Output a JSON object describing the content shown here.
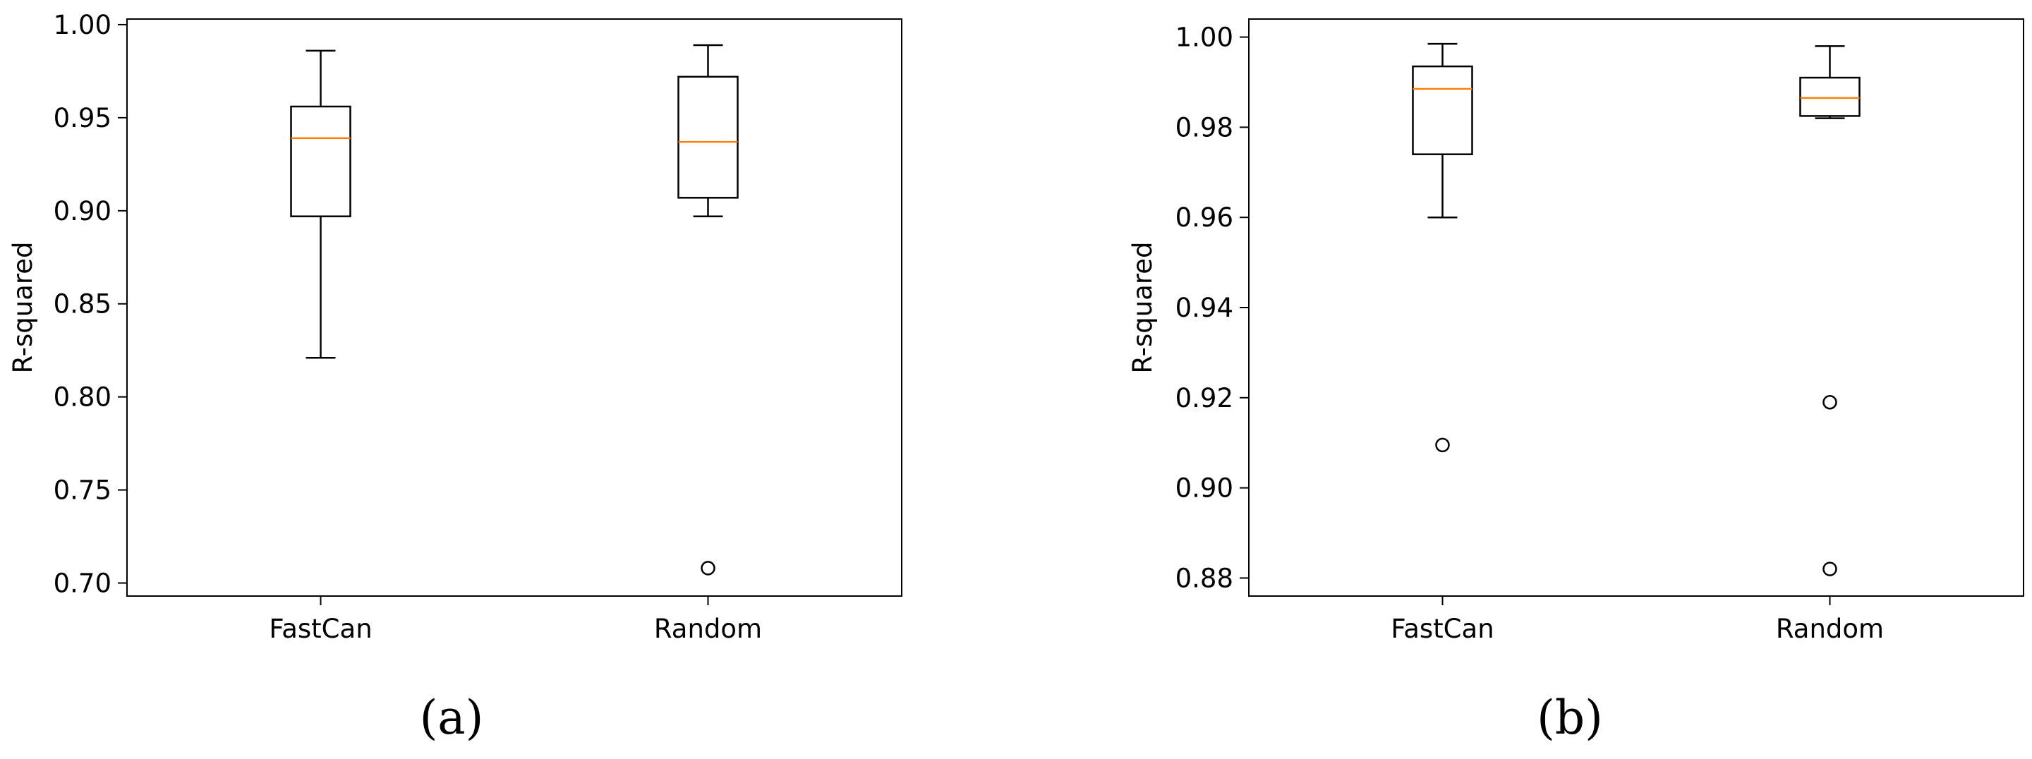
{
  "chart_data": [
    {
      "type": "box",
      "panel_label": "(a)",
      "ylabel": "R-squared",
      "xlabel": "",
      "categories": [
        "FastCan",
        "Random"
      ],
      "ylim": [
        0.693,
        1.003
      ],
      "yticks": [
        0.7,
        0.75,
        0.8,
        0.85,
        0.9,
        0.95,
        1.0
      ],
      "ytick_labels": [
        "0.70",
        "0.75",
        "0.80",
        "0.85",
        "0.90",
        "0.95",
        "1.00"
      ],
      "boxes": [
        {
          "name": "FastCan",
          "whisker_low": 0.821,
          "q1": 0.897,
          "median": 0.939,
          "q3": 0.956,
          "whisker_high": 0.986,
          "outliers": []
        },
        {
          "name": "Random",
          "whisker_low": 0.897,
          "q1": 0.907,
          "median": 0.937,
          "q3": 0.972,
          "whisker_high": 0.989,
          "outliers": [
            0.708
          ]
        }
      ],
      "grid": false,
      "median_color": "#ff7f0e",
      "box_color": "#000000"
    },
    {
      "type": "box",
      "panel_label": "(b)",
      "ylabel": "R-squared",
      "xlabel": "",
      "categories": [
        "FastCan",
        "Random"
      ],
      "ylim": [
        0.876,
        1.004
      ],
      "yticks": [
        0.88,
        0.9,
        0.92,
        0.94,
        0.96,
        0.98,
        1.0
      ],
      "ytick_labels": [
        "0.88",
        "0.90",
        "0.92",
        "0.94",
        "0.96",
        "0.98",
        "1.00"
      ],
      "boxes": [
        {
          "name": "FastCan",
          "whisker_low": 0.96,
          "q1": 0.974,
          "median": 0.9885,
          "q3": 0.9935,
          "whisker_high": 0.9985,
          "outliers": [
            0.9095
          ]
        },
        {
          "name": "Random",
          "whisker_low": 0.982,
          "q1": 0.9825,
          "median": 0.9865,
          "q3": 0.991,
          "whisker_high": 0.998,
          "outliers": [
            0.919,
            0.882
          ]
        }
      ],
      "grid": false,
      "median_color": "#ff7f0e",
      "box_color": "#000000"
    }
  ]
}
